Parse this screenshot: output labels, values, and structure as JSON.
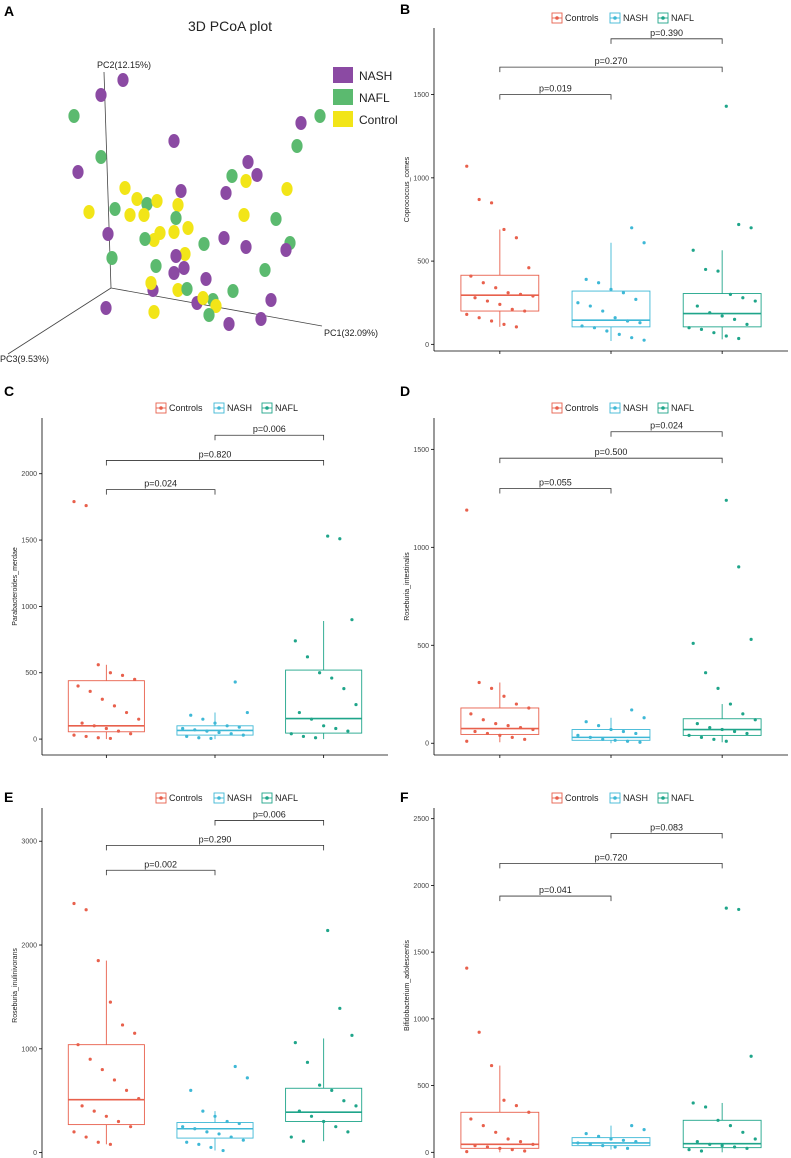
{
  "colors": {
    "Controls": "#E8604C",
    "NASH": "#3EB8D6",
    "NAFL": "#1FA58A",
    "pcoa_NASH": "#8B4AA3",
    "pcoa_NAFL": "#5BBA6F",
    "pcoa_Control": "#F2E518"
  },
  "chart_data": [
    {
      "type": "scatter",
      "panel": "A",
      "title": "3D PCoA plot",
      "xlabel": "PC1(32.09%)",
      "ylabel": "PC2(12.15%)",
      "zlabel": "PC3(9.53%)",
      "legend": [
        "NASH",
        "NAFL",
        "Control"
      ],
      "legend_position": "top-right"
    },
    {
      "type": "box",
      "panel": "B",
      "ylabel": "Coprococcus_comes",
      "categories": [
        "Controls",
        "NASH",
        "NAFL"
      ],
      "ylim": [
        -40,
        1900
      ],
      "yticks": [
        0,
        500,
        1000,
        1500
      ],
      "boxes": [
        {
          "name": "Controls",
          "q1": 200,
          "median": 295,
          "q3": 415,
          "wlo": 105,
          "whi": 690
        },
        {
          "name": "NASH",
          "q1": 105,
          "median": 145,
          "q3": 320,
          "wlo": 20,
          "whi": 610
        },
        {
          "name": "NAFL",
          "q1": 105,
          "median": 185,
          "q3": 305,
          "wlo": 30,
          "whi": 565
        }
      ],
      "points": [
        [
          1070,
          870,
          850,
          690,
          640,
          460,
          410,
          370,
          340,
          310,
          300,
          290,
          280,
          260,
          240,
          210,
          200,
          180,
          160,
          140,
          120,
          105
        ],
        [
          700,
          610,
          390,
          370,
          330,
          310,
          270,
          250,
          230,
          200,
          160,
          140,
          130,
          110,
          100,
          80,
          60,
          40,
          25
        ],
        [
          1430,
          720,
          700,
          565,
          450,
          440,
          300,
          280,
          260,
          230,
          190,
          170,
          150,
          120,
          100,
          90,
          70,
          50,
          35
        ]
      ],
      "comparisons": [
        {
          "label": "p=0.019",
          "from": 0,
          "to": 1,
          "y": 1500
        },
        {
          "label": "p=0.270",
          "from": 0,
          "to": 2,
          "y": 1665
        },
        {
          "label": "p=0.390",
          "from": 1,
          "to": 2,
          "y": 1835
        }
      ],
      "legend": [
        "Controls",
        "NASH",
        "NAFL"
      ],
      "legend_position": "top"
    },
    {
      "type": "box",
      "panel": "C",
      "ylabel": "Parabacteroides_merdae",
      "categories": [
        "Controls",
        "NASH",
        "NAFL"
      ],
      "ylim": [
        -120,
        2420
      ],
      "yticks": [
        0,
        500,
        1000,
        1500,
        2000
      ],
      "boxes": [
        {
          "name": "Controls",
          "q1": 55,
          "median": 100,
          "q3": 440,
          "wlo": 0,
          "whi": 560
        },
        {
          "name": "NASH",
          "q1": 30,
          "median": 65,
          "q3": 100,
          "wlo": 0,
          "whi": 200
        },
        {
          "name": "NAFL",
          "q1": 45,
          "median": 155,
          "q3": 520,
          "wlo": 0,
          "whi": 890
        }
      ],
      "points": [
        [
          1790,
          1760,
          560,
          500,
          480,
          450,
          400,
          360,
          300,
          250,
          200,
          150,
          120,
          100,
          80,
          60,
          40,
          30,
          20,
          10,
          5
        ],
        [
          430,
          200,
          180,
          150,
          120,
          100,
          90,
          80,
          70,
          60,
          50,
          40,
          30,
          20,
          10,
          5
        ],
        [
          1530,
          1510,
          900,
          740,
          620,
          500,
          460,
          380,
          260,
          200,
          150,
          100,
          80,
          60,
          40,
          20,
          10
        ]
      ],
      "comparisons": [
        {
          "label": "p=0.024",
          "from": 0,
          "to": 1,
          "y": 1880
        },
        {
          "label": "p=0.820",
          "from": 0,
          "to": 2,
          "y": 2100
        },
        {
          "label": "p=0.006",
          "from": 1,
          "to": 2,
          "y": 2290
        }
      ],
      "legend": [
        "Controls",
        "NASH",
        "NAFL"
      ],
      "legend_position": "top"
    },
    {
      "type": "box",
      "panel": "D",
      "ylabel": "Roseburia_intestinalis",
      "categories": [
        "Controls",
        "NASH",
        "NAFL"
      ],
      "ylim": [
        -60,
        1660
      ],
      "yticks": [
        0,
        500,
        1000,
        1500
      ],
      "boxes": [
        {
          "name": "Controls",
          "q1": 45,
          "median": 75,
          "q3": 180,
          "wlo": 5,
          "whi": 310
        },
        {
          "name": "NASH",
          "q1": 15,
          "median": 30,
          "q3": 70,
          "wlo": 0,
          "whi": 130
        },
        {
          "name": "NAFL",
          "q1": 40,
          "median": 70,
          "q3": 125,
          "wlo": 5,
          "whi": 200
        }
      ],
      "points": [
        [
          1190,
          310,
          280,
          240,
          200,
          180,
          150,
          120,
          100,
          90,
          80,
          70,
          60,
          50,
          40,
          30,
          20,
          10
        ],
        [
          170,
          130,
          110,
          90,
          70,
          60,
          50,
          40,
          30,
          20,
          15,
          10,
          5
        ],
        [
          1240,
          900,
          530,
          510,
          360,
          280,
          200,
          150,
          120,
          100,
          80,
          70,
          60,
          50,
          40,
          30,
          20,
          10
        ]
      ],
      "comparisons": [
        {
          "label": "p=0.055",
          "from": 0,
          "to": 1,
          "y": 1300
        },
        {
          "label": "p=0.500",
          "from": 0,
          "to": 2,
          "y": 1455
        },
        {
          "label": "p=0.024",
          "from": 1,
          "to": 2,
          "y": 1590
        }
      ],
      "legend": [
        "Controls",
        "NASH",
        "NAFL"
      ],
      "legend_position": "top"
    },
    {
      "type": "box",
      "panel": "E",
      "ylabel": "Roseburia_inulinivorans",
      "categories": [
        "Controls",
        "NASH",
        "NAFL"
      ],
      "ylim": [
        -100,
        3320
      ],
      "yticks": [
        0,
        1000,
        2000,
        3000
      ],
      "boxes": [
        {
          "name": "Controls",
          "q1": 270,
          "median": 510,
          "q3": 1040,
          "wlo": 80,
          "whi": 1850
        },
        {
          "name": "NASH",
          "q1": 140,
          "median": 230,
          "q3": 290,
          "wlo": 20,
          "whi": 400
        },
        {
          "name": "NAFL",
          "q1": 300,
          "median": 390,
          "q3": 620,
          "wlo": 110,
          "whi": 1100
        }
      ],
      "points": [
        [
          2400,
          2340,
          1850,
          1450,
          1230,
          1150,
          1040,
          900,
          800,
          700,
          600,
          520,
          450,
          400,
          350,
          300,
          250,
          200,
          150,
          100,
          80
        ],
        [
          830,
          720,
          600,
          400,
          350,
          300,
          280,
          250,
          230,
          200,
          180,
          150,
          120,
          100,
          80,
          50,
          20
        ],
        [
          2140,
          1390,
          1130,
          1060,
          870,
          650,
          600,
          500,
          450,
          400,
          350,
          300,
          250,
          200,
          150,
          110
        ]
      ],
      "comparisons": [
        {
          "label": "p=0.002",
          "from": 0,
          "to": 1,
          "y": 2720
        },
        {
          "label": "p=0.290",
          "from": 0,
          "to": 2,
          "y": 2960
        },
        {
          "label": "p=0.006",
          "from": 1,
          "to": 2,
          "y": 3200
        }
      ],
      "legend": [
        "Controls",
        "NASH",
        "NAFL"
      ],
      "legend_position": "top"
    },
    {
      "type": "box",
      "panel": "F",
      "ylabel": "Bifidobacterium_adolescentis",
      "categories": [
        "Controls",
        "NASH",
        "NAFL"
      ],
      "ylim": [
        -80,
        2580
      ],
      "yticks": [
        0,
        500,
        1000,
        1500,
        2000,
        2500
      ],
      "boxes": [
        {
          "name": "Controls",
          "q1": 30,
          "median": 60,
          "q3": 300,
          "wlo": 0,
          "whi": 650
        },
        {
          "name": "NASH",
          "q1": 50,
          "median": 70,
          "q3": 110,
          "wlo": 20,
          "whi": 200
        },
        {
          "name": "NAFL",
          "q1": 35,
          "median": 65,
          "q3": 240,
          "wlo": 0,
          "whi": 370
        }
      ],
      "points": [
        [
          1380,
          900,
          650,
          390,
          350,
          300,
          250,
          200,
          150,
          100,
          80,
          60,
          50,
          40,
          30,
          20,
          10,
          5
        ],
        [
          200,
          170,
          140,
          120,
          100,
          90,
          80,
          70,
          60,
          50,
          40,
          30
        ],
        [
          1830,
          1820,
          720,
          370,
          340,
          240,
          200,
          150,
          100,
          80,
          60,
          50,
          40,
          30,
          20,
          10
        ]
      ],
      "comparisons": [
        {
          "label": "p=0.041",
          "from": 0,
          "to": 1,
          "y": 1920
        },
        {
          "label": "p=0.720",
          "from": 0,
          "to": 2,
          "y": 2165
        },
        {
          "label": "p=0.083",
          "from": 1,
          "to": 2,
          "y": 2390
        }
      ],
      "legend": [
        "Controls",
        "NASH",
        "NAFL"
      ],
      "legend_position": "top"
    }
  ]
}
